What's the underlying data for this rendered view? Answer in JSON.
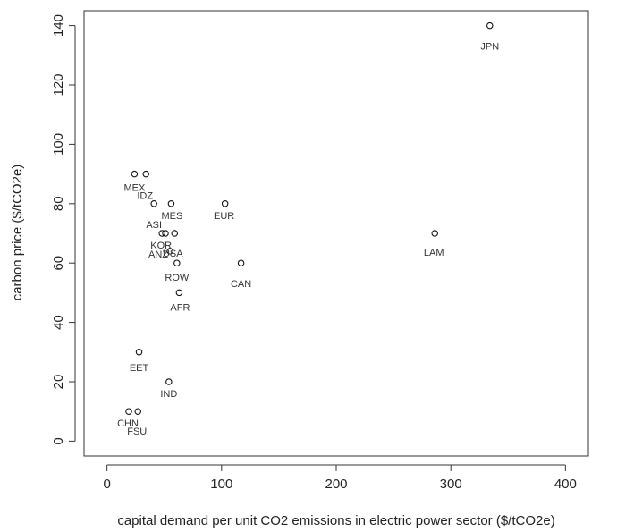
{
  "chart_data": {
    "type": "scatter",
    "title": "",
    "xlabel": "capital demand per unit CO2 emissions in electric power sector ($/tCO2e)",
    "ylabel": "carbon price ($/tCO2e)",
    "xlim": [
      -20,
      420
    ],
    "ylim": [
      -5,
      145
    ],
    "xticks": [
      0,
      100,
      200,
      300,
      400
    ],
    "yticks": [
      0,
      20,
      40,
      60,
      80,
      100,
      120,
      140
    ],
    "grid": false,
    "points": [
      {
        "x": 334,
        "y": 140,
        "label": "JPN"
      },
      {
        "x": 286,
        "y": 70,
        "label": "LAM"
      },
      {
        "x": 103,
        "y": 80,
        "label": "EUR"
      },
      {
        "x": 117,
        "y": 60,
        "label": "CAN"
      },
      {
        "x": 24,
        "y": 90,
        "label": "MEX"
      },
      {
        "x": 34,
        "y": 90,
        "label": "IDZ"
      },
      {
        "x": 41,
        "y": 80,
        "label": "ASI"
      },
      {
        "x": 56,
        "y": 80,
        "label": "MES"
      },
      {
        "x": 48,
        "y": 70,
        "label": "KOR"
      },
      {
        "x": 51,
        "y": 70,
        "label": "ANZ"
      },
      {
        "x": 59,
        "y": 70,
        "label": "USA"
      },
      {
        "x": 55,
        "y": 64,
        "label": ""
      },
      {
        "x": 61,
        "y": 60,
        "label": "ROW"
      },
      {
        "x": 63,
        "y": 50,
        "label": "AFR"
      },
      {
        "x": 28,
        "y": 30,
        "label": "EET"
      },
      {
        "x": 54,
        "y": 20,
        "label": "IND"
      },
      {
        "x": 19,
        "y": 10,
        "label": "CHN"
      },
      {
        "x": 27,
        "y": 10,
        "label": "FSU"
      }
    ],
    "label_offsets": {
      "JPN": [
        0,
        27
      ],
      "LAM": [
        -1,
        25
      ],
      "EUR": [
        -1,
        17
      ],
      "CAN": [
        0,
        27
      ],
      "MEX": [
        0,
        19
      ],
      "IDZ": [
        -1,
        28
      ],
      "ASI": [
        0,
        27
      ],
      "MES": [
        1,
        17
      ],
      "KOR": [
        -1,
        17
      ],
      "ANZ": [
        -8,
        27
      ],
      "USA": [
        -2,
        26
      ],
      "ROW": [
        0,
        20
      ],
      "AFR": [
        1,
        20
      ],
      "EET": [
        0,
        21
      ],
      "IND": [
        0,
        17
      ],
      "CHN": [
        -1,
        17
      ],
      "FSU": [
        -1,
        26
      ]
    }
  }
}
